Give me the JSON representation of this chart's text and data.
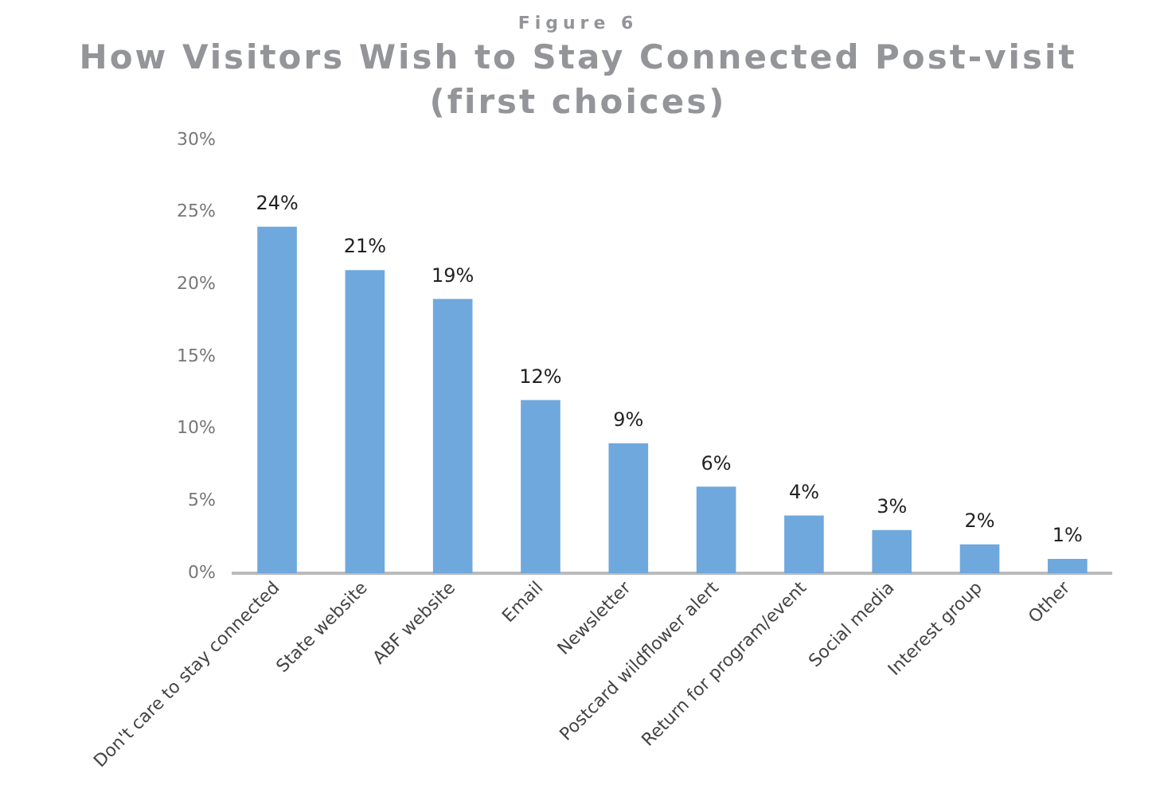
{
  "chart_data": {
    "type": "bar",
    "subtitle": "Figure 6",
    "title": "How Visitors Wish to Stay Connected Post-visit (first choices)",
    "categories": [
      "Don't care to stay connected",
      "State website",
      "ABF website",
      "Email",
      "Newsletter",
      "Postcard wildflower alert",
      "Return for program/event",
      "Social media",
      "Interest group",
      "Other"
    ],
    "values": [
      24,
      21,
      19,
      12,
      9,
      6,
      4,
      3,
      2,
      1
    ],
    "color": "#6fa8dc",
    "ylim": [
      0,
      30
    ],
    "yticks": [
      {
        "value": 0,
        "label": "0%"
      },
      {
        "value": 5,
        "label": "5%"
      },
      {
        "value": 10,
        "label": "10%"
      },
      {
        "value": 15,
        "label": "15%"
      },
      {
        "value": 20,
        "label": "20%"
      },
      {
        "value": 25,
        "label": "25%"
      },
      {
        "value": 30,
        "label": "30%"
      }
    ],
    "value_labels": [
      "24%",
      "21%",
      "19%",
      "12%",
      "9%",
      "6%",
      "4%",
      "3%",
      "2%",
      "1%"
    ],
    "grid": false,
    "legend": false
  }
}
